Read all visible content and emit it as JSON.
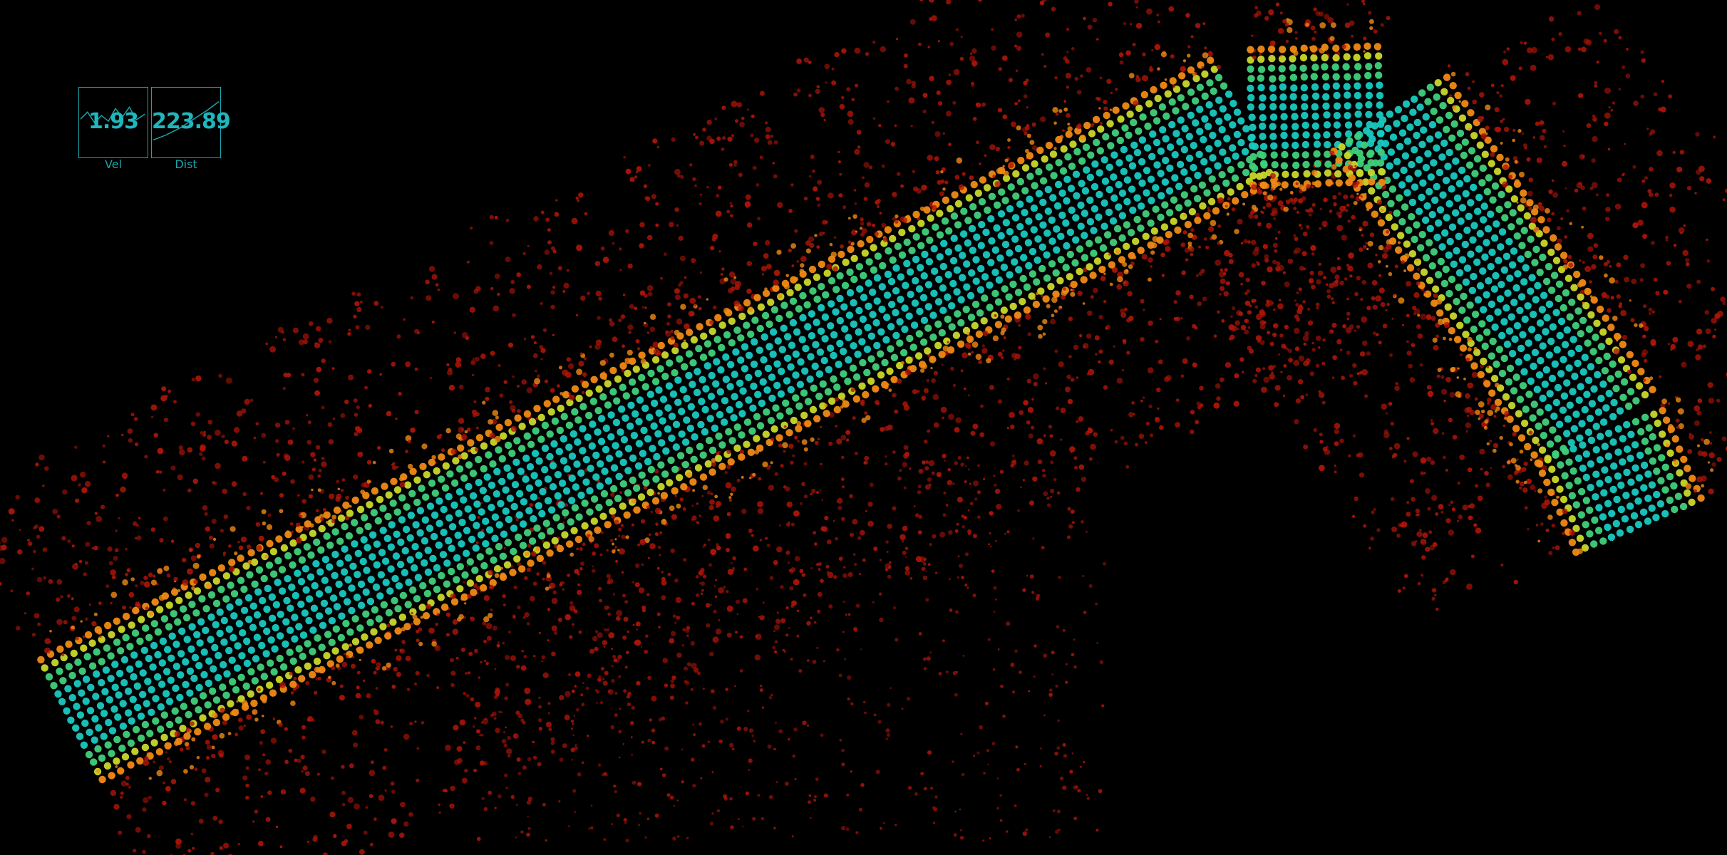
{
  "viewer": {
    "background": "#000000",
    "accent_color": "#1fb7bd"
  },
  "hud": {
    "velocity": {
      "value": "1.93",
      "label": "Vel"
    },
    "distance": {
      "value": "223.89",
      "label": "Dist"
    }
  },
  "colormap": {
    "ground": "#18c9c0",
    "low": "#3fd07a",
    "mid": "#c8d82a",
    "high": "#f08a14",
    "top": "#b01508"
  }
}
